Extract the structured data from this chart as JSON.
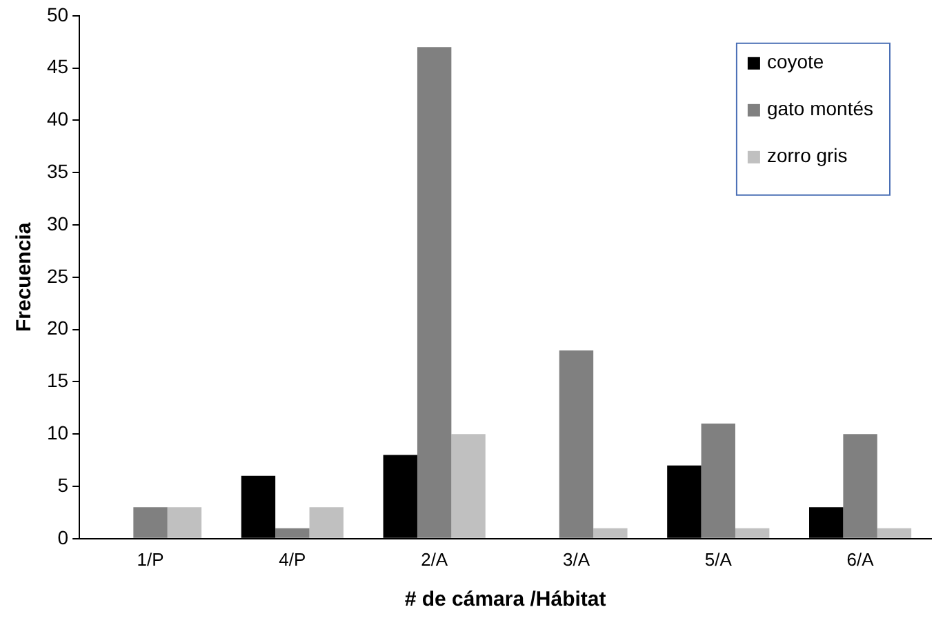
{
  "chart_data": {
    "type": "bar",
    "xlabel": "# de cámara /Hábitat",
    "ylabel": "Frecuencia",
    "categories": [
      "1/P",
      "4/P",
      "2/A",
      "3/A",
      "5/A",
      "6/A"
    ],
    "series": [
      {
        "name": "coyote",
        "color": "#000000",
        "values": [
          0,
          6,
          8,
          0,
          7,
          3
        ]
      },
      {
        "name": "gato montés",
        "color": "#808080",
        "values": [
          3,
          1,
          47,
          18,
          11,
          10
        ]
      },
      {
        "name": "zorro gris",
        "color": "#c0c0c0",
        "values": [
          3,
          3,
          10,
          1,
          1,
          1
        ]
      }
    ],
    "ylim": [
      0,
      50
    ],
    "yticks": [
      0,
      5,
      10,
      15,
      20,
      25,
      30,
      35,
      40,
      45,
      50
    ],
    "grid": false,
    "legend": "top right"
  }
}
